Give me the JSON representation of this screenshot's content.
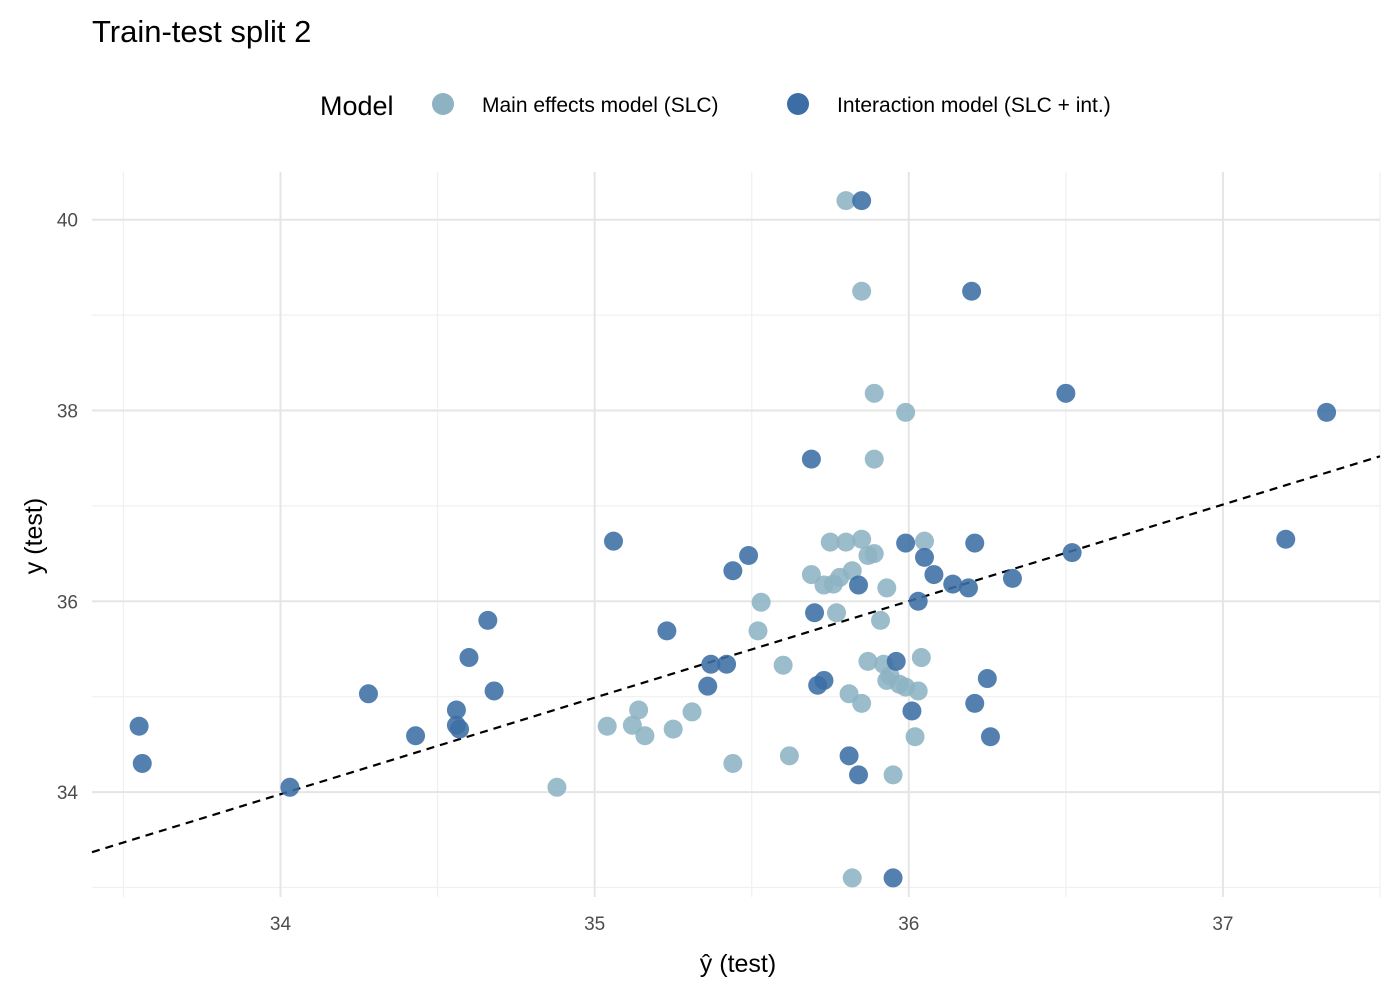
{
  "chart_data": {
    "type": "scatter",
    "title": "Train-test split 2",
    "xlabel": "ŷ (test)",
    "ylabel": "y (test)",
    "xlim": [
      33.4,
      37.5
    ],
    "ylim": [
      32.9,
      40.5
    ],
    "x_ticks": [
      34,
      35,
      36,
      37
    ],
    "x_tick_labels": [
      "34",
      "35",
      "36",
      "37"
    ],
    "y_ticks": [
      34,
      36,
      38,
      40
    ],
    "y_tick_labels": [
      "34",
      "36",
      "38",
      "40"
    ],
    "grid": true,
    "legend": {
      "title": "Model",
      "position": "top"
    },
    "reference_line": {
      "style": "dashed",
      "color": "#000000",
      "x": [
        33.4,
        37.5
      ],
      "y": [
        33.37,
        37.52
      ]
    },
    "series": [
      {
        "name": "Main effects model (SLC)",
        "color": "#8db3c3",
        "points": [
          [
            35.8,
            40.2
          ],
          [
            35.85,
            39.25
          ],
          [
            35.89,
            38.18
          ],
          [
            35.99,
            37.98
          ],
          [
            35.89,
            37.49
          ],
          [
            35.75,
            36.62
          ],
          [
            35.8,
            36.62
          ],
          [
            35.85,
            36.65
          ],
          [
            36.05,
            36.63
          ],
          [
            35.87,
            36.48
          ],
          [
            35.89,
            36.5
          ],
          [
            35.69,
            36.28
          ],
          [
            35.82,
            36.32
          ],
          [
            35.78,
            36.25
          ],
          [
            35.73,
            36.17
          ],
          [
            35.76,
            36.18
          ],
          [
            35.93,
            36.14
          ],
          [
            35.53,
            35.99
          ],
          [
            35.77,
            35.88
          ],
          [
            35.91,
            35.8
          ],
          [
            35.52,
            35.69
          ],
          [
            35.87,
            35.37
          ],
          [
            35.92,
            35.34
          ],
          [
            35.6,
            35.33
          ],
          [
            36.04,
            35.41
          ],
          [
            35.94,
            35.22
          ],
          [
            35.93,
            35.17
          ],
          [
            35.97,
            35.13
          ],
          [
            35.99,
            35.1
          ],
          [
            36.03,
            35.06
          ],
          [
            35.81,
            35.03
          ],
          [
            35.85,
            34.93
          ],
          [
            35.14,
            34.86
          ],
          [
            35.31,
            34.84
          ],
          [
            35.04,
            34.69
          ],
          [
            35.12,
            34.7
          ],
          [
            35.25,
            34.66
          ],
          [
            35.16,
            34.59
          ],
          [
            36.02,
            34.58
          ],
          [
            35.62,
            34.38
          ],
          [
            35.44,
            34.3
          ],
          [
            35.95,
            34.18
          ],
          [
            34.88,
            34.05
          ],
          [
            35.82,
            33.1
          ]
        ]
      },
      {
        "name": "Interaction model (SLC + int.)",
        "color": "#3c6ea5",
        "points": [
          [
            35.85,
            40.2
          ],
          [
            36.2,
            39.25
          ],
          [
            36.5,
            38.18
          ],
          [
            37.33,
            37.98
          ],
          [
            35.69,
            37.49
          ],
          [
            35.06,
            36.63
          ],
          [
            37.2,
            36.65
          ],
          [
            35.99,
            36.61
          ],
          [
            36.21,
            36.61
          ],
          [
            36.52,
            36.51
          ],
          [
            35.49,
            36.48
          ],
          [
            36.05,
            36.46
          ],
          [
            35.44,
            36.32
          ],
          [
            36.08,
            36.28
          ],
          [
            36.33,
            36.24
          ],
          [
            36.14,
            36.18
          ],
          [
            35.84,
            36.17
          ],
          [
            36.19,
            36.14
          ],
          [
            36.03,
            36.0
          ],
          [
            35.7,
            35.88
          ],
          [
            34.66,
            35.8
          ],
          [
            35.23,
            35.69
          ],
          [
            34.6,
            35.41
          ],
          [
            35.96,
            35.37
          ],
          [
            35.37,
            35.34
          ],
          [
            35.42,
            35.34
          ],
          [
            36.25,
            35.19
          ],
          [
            35.73,
            35.17
          ],
          [
            35.36,
            35.11
          ],
          [
            35.71,
            35.12
          ],
          [
            34.68,
            35.06
          ],
          [
            34.28,
            35.03
          ],
          [
            36.21,
            34.93
          ],
          [
            34.56,
            34.86
          ],
          [
            36.01,
            34.85
          ],
          [
            33.55,
            34.69
          ],
          [
            34.56,
            34.7
          ],
          [
            34.57,
            34.66
          ],
          [
            34.43,
            34.59
          ],
          [
            36.26,
            34.58
          ],
          [
            35.81,
            34.38
          ],
          [
            33.56,
            34.3
          ],
          [
            35.84,
            34.18
          ],
          [
            34.03,
            34.05
          ],
          [
            35.95,
            33.1
          ]
        ]
      }
    ]
  }
}
